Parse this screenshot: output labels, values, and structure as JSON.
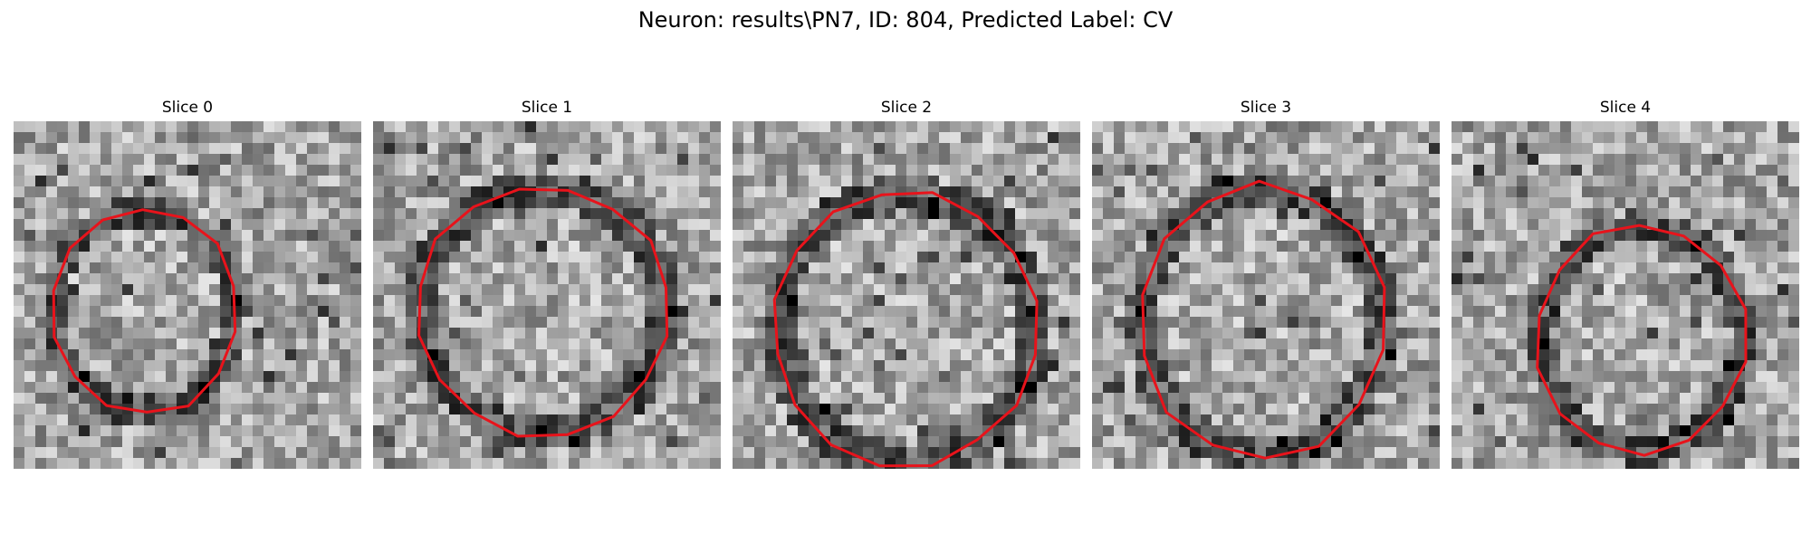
{
  "figure": {
    "title": "Neuron: results\\PN7, ID: 804, Predicted Label: CV"
  },
  "contour_color": "#e8131b",
  "colormap": "gray",
  "panels": [
    {
      "title": "Slice 0"
    },
    {
      "title": "Slice 1"
    },
    {
      "title": "Slice 2"
    },
    {
      "title": "Slice 3"
    },
    {
      "title": "Slice 4"
    }
  ]
}
